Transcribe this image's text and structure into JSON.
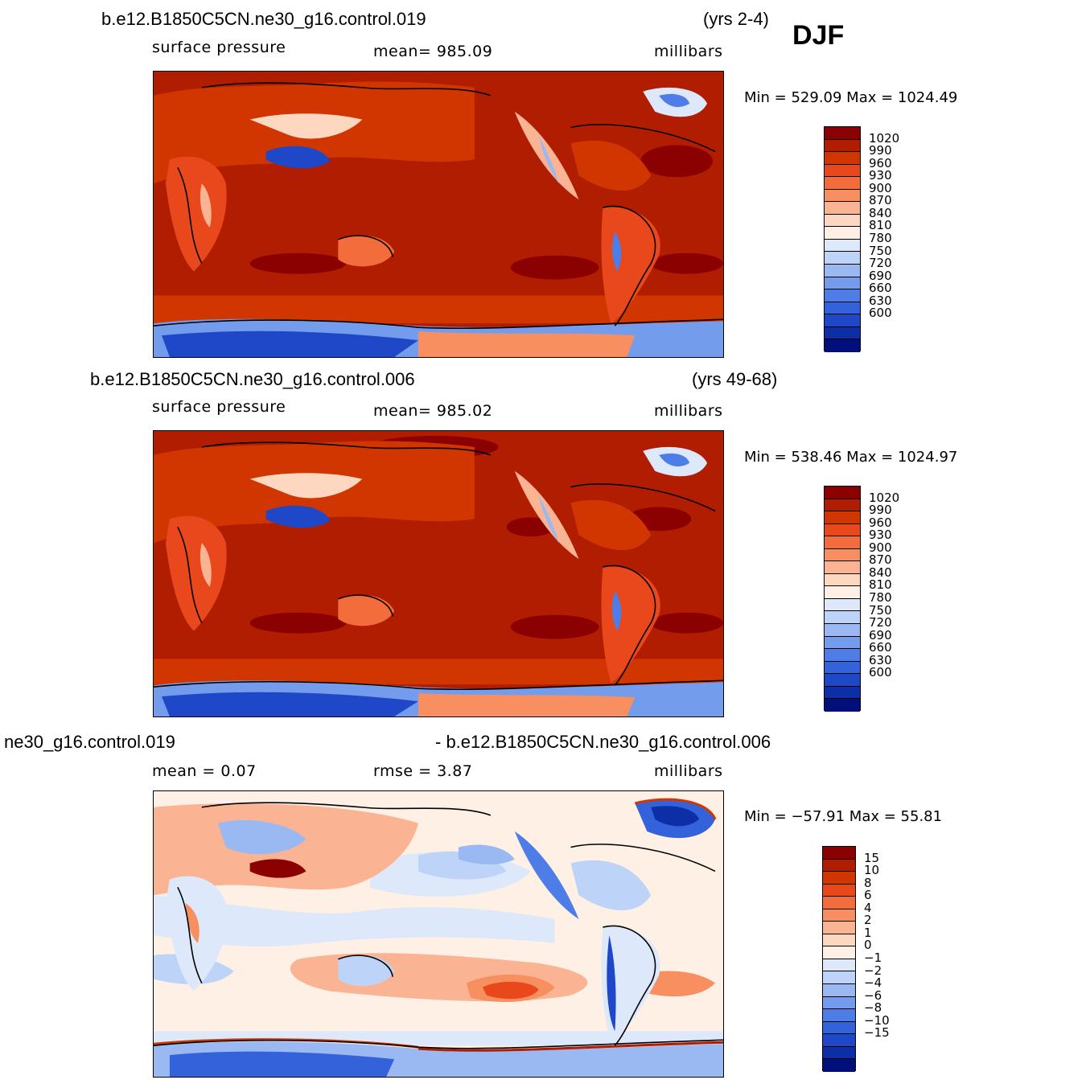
{
  "season": "DJF",
  "panels": [
    {
      "title_left": "b.e12.B1850C5CN.ne30_g16.control.019",
      "title_right": "(yrs 2-4)",
      "sub_left": "surface pressure",
      "sub_mid": "mean=  985.09",
      "sub_right": "millibars",
      "minmax": "Min  =  529.09  Max  =  1024.49"
    },
    {
      "title_left": "b.e12.B1850C5CN.ne30_g16.control.006",
      "title_right": "(yrs 49-68)",
      "sub_left": "surface pressure",
      "sub_mid": "mean=  985.02",
      "sub_right": "millibars",
      "minmax": "Min  =  538.46  Max  =  1024.97"
    },
    {
      "title_left": "ne30_g16.control.019",
      "title_right": "- b.e12.B1850C5CN.ne30_g16.control.006",
      "sub_left": "mean  =     0.07",
      "sub_mid": "rmse  =     3.87",
      "sub_right": "millibars",
      "minmax": "Min  = −57.91  Max  =   55.81"
    }
  ],
  "chart_data": [
    {
      "type": "heatmap",
      "title": "b.e12.B1850C5CN.ne30_g16.control.019",
      "variable": "surface pressure",
      "units": "millibars",
      "mean": 985.09,
      "min": 529.09,
      "max": 1024.49,
      "colorbar_levels": [
        "1020",
        "990",
        "960",
        "930",
        "900",
        "870",
        "840",
        "810",
        "780",
        "750",
        "720",
        "690",
        "660",
        "630",
        "600"
      ],
      "colors": [
        "#8b0000",
        "#b01d00",
        "#d23600",
        "#e8481b",
        "#f26c3c",
        "#f78f60",
        "#fbb493",
        "#fdd7c0",
        "#fef0e4",
        "#dde9fb",
        "#bdd3f7",
        "#9ab9f3",
        "#749ced",
        "#4f7de8",
        "#3462db",
        "#1e48c8",
        "#0c2fa8",
        "#000f7a"
      ]
    },
    {
      "type": "heatmap",
      "title": "b.e12.B1850C5CN.ne30_g16.control.006",
      "variable": "surface pressure",
      "units": "millibars",
      "mean": 985.02,
      "min": 538.46,
      "max": 1024.97,
      "colorbar_levels": [
        "1020",
        "990",
        "960",
        "930",
        "900",
        "870",
        "840",
        "810",
        "780",
        "750",
        "720",
        "690",
        "660",
        "630",
        "600"
      ],
      "colors": [
        "#8b0000",
        "#b01d00",
        "#d23600",
        "#e8481b",
        "#f26c3c",
        "#f78f60",
        "#fbb493",
        "#fdd7c0",
        "#fef0e4",
        "#dde9fb",
        "#bdd3f7",
        "#9ab9f3",
        "#749ced",
        "#4f7de8",
        "#3462db",
        "#1e48c8",
        "#0c2fa8",
        "#000f7a"
      ]
    },
    {
      "type": "heatmap",
      "title": "ne30_g16.control.019 - b.e12.B1850C5CN.ne30_g16.control.006",
      "units": "millibars",
      "mean": 0.07,
      "rmse": 3.87,
      "min": -57.91,
      "max": 55.81,
      "colorbar_levels": [
        "15",
        "10",
        "8",
        "6",
        "4",
        "2",
        "1",
        "0",
        "−1",
        "−2",
        "−4",
        "−6",
        "−8",
        "−10",
        "−15"
      ],
      "colors": [
        "#8b0000",
        "#b01d00",
        "#d23600",
        "#e8481b",
        "#f26c3c",
        "#f78f60",
        "#fbb493",
        "#fdd7c0",
        "#fef0e4",
        "#dde9fb",
        "#bdd3f7",
        "#9ab9f3",
        "#749ced",
        "#4f7de8",
        "#3462db",
        "#1e48c8",
        "#0c2fa8",
        "#000f7a"
      ]
    }
  ]
}
